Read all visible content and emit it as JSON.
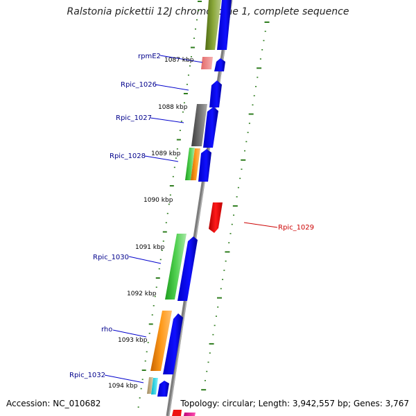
{
  "title": "Ralstonia pickettii 12J chromosome 1, complete sequence",
  "accession": "Accession: NC_010682",
  "topology": "Topology: circular; Length: 3,942,557 bp; Genes: 3,767",
  "kbp_labels": [
    "1087 kbp",
    "1088 kbp",
    "1089 kbp",
    "1090 kbp",
    "1091 kbp",
    "1092 kbp",
    "1093 kbp",
    "1094 kbp"
  ],
  "gene_labels": [
    {
      "name": "rpmE2",
      "color": "#00008b"
    },
    {
      "name": "Rpic_1026",
      "color": "#00008b"
    },
    {
      "name": "Rpic_1027",
      "color": "#00008b"
    },
    {
      "name": "Rpic_1028",
      "color": "#00008b"
    },
    {
      "name": "Rpic_1029",
      "color": "#cc0000"
    },
    {
      "name": "Rpic_1030",
      "color": "#00008b"
    },
    {
      "name": "rho",
      "color": "#00008b"
    },
    {
      "name": "Rpic_1032",
      "color": "#00008b"
    }
  ],
  "colors": {
    "forward_strand_gene": "#0000ee",
    "reverse_strand_gene": "#ee0000",
    "backbone": "#8a8a8a",
    "ticks": "#2e7d1e"
  }
}
